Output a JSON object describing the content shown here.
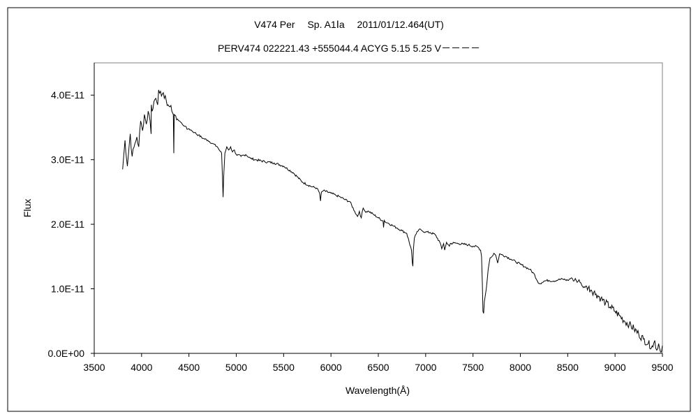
{
  "chart_data": {
    "type": "line",
    "title": "V474 Per　 Sp. A1Ⅰa　 2011/01/12.464(UT)",
    "subtitle": "PERV474 022221.43 +555044.4 ACYG 5.15 5.25 V－－－－",
    "xlabel": "Wavelength(Å)",
    "ylabel": "Flux",
    "xlim": [
      3500,
      9500
    ],
    "ylim": [
      0,
      4.5e-11
    ],
    "xticks": [
      3500,
      4000,
      4500,
      5000,
      5500,
      6000,
      6500,
      7000,
      7500,
      8000,
      8500,
      9000,
      9500
    ],
    "xtick_labels": [
      "3500",
      "4000",
      "4500",
      "5000",
      "5500",
      "6000",
      "6500",
      "7000",
      "7500",
      "8000",
      "8500",
      "9000",
      "9500"
    ],
    "yticks": [
      0,
      1e-11,
      2e-11,
      3e-11,
      4e-11
    ],
    "ytick_labels": [
      "0.0E+00",
      "1.0E-11",
      "2.0E-11",
      "3.0E-11",
      "4.0E-11"
    ],
    "grid": false,
    "legend": "none",
    "line_color": "#000000",
    "series": [
      {
        "x": [
          3800,
          3825,
          3850,
          3880,
          3900,
          3930,
          3950,
          3970,
          3990,
          4010,
          4030,
          4050,
          4070,
          4090,
          4101,
          4103,
          4110,
          4130,
          4150,
          4170,
          4180,
          4200,
          4220,
          4240,
          4260,
          4280,
          4300,
          4320,
          4335,
          4340,
          4345,
          4360,
          4380,
          4400,
          4430,
          4460,
          4480,
          4500,
          4530,
          4560,
          4600,
          4650,
          4700,
          4750,
          4800,
          4820,
          4845,
          4855,
          4861,
          4867,
          4880,
          4900,
          4920,
          4940,
          4960,
          4980,
          5000,
          5050,
          5100,
          5150,
          5200,
          5300,
          5400,
          5500,
          5600,
          5700,
          5800,
          5850,
          5880,
          5890,
          5895,
          5900,
          5920,
          6000,
          6050,
          6100,
          6150,
          6200,
          6250,
          6280,
          6300,
          6320,
          6340,
          6360,
          6400,
          6450,
          6500,
          6550,
          6555,
          6563,
          6570,
          6600,
          6650,
          6700,
          6750,
          6800,
          6850,
          6860,
          6865,
          6870,
          6880,
          6900,
          6930,
          6960,
          7000,
          7050,
          7100,
          7150,
          7170,
          7190,
          7200,
          7220,
          7250,
          7260,
          7300,
          7350,
          7400,
          7450,
          7500,
          7550,
          7580,
          7590,
          7598,
          7605,
          7612,
          7620,
          7640,
          7660,
          7680,
          7700,
          7720,
          7740,
          7760,
          7780,
          7800,
          7850,
          7900,
          7950,
          8000,
          8050,
          8100,
          8150,
          8180,
          8200,
          8230,
          8250,
          8300,
          8350,
          8400,
          8450,
          8500,
          8540,
          8560,
          8580,
          8600,
          8620,
          8650,
          8665,
          8700,
          8750,
          8800,
          8850,
          8900,
          8950,
          9000,
          9050,
          9100,
          9150,
          9200,
          9250,
          9300,
          9350,
          9400,
          9420,
          9440,
          9460,
          9480,
          9500
        ],
        "y": [
          2.85e-11,
          3.3e-11,
          2.9e-11,
          3.4e-11,
          3.05e-11,
          3.25e-11,
          3.35e-11,
          3.2e-11,
          3.6e-11,
          3.45e-11,
          3.7e-11,
          3.55e-11,
          3.75e-11,
          3.6e-11,
          3.4e-11,
          3.85e-11,
          3.75e-11,
          3.9e-11,
          3.95e-11,
          3.85e-11,
          4.08e-11,
          4.06e-11,
          4.02e-11,
          3.95e-11,
          3.92e-11,
          3.85e-11,
          3.82e-11,
          3.75e-11,
          3.7e-11,
          3.1e-11,
          3.7e-11,
          3.68e-11,
          3.63e-11,
          3.6e-11,
          3.55e-11,
          3.52e-11,
          3.47e-11,
          3.48e-11,
          3.45e-11,
          3.42e-11,
          3.38e-11,
          3.33e-11,
          3.3e-11,
          3.25e-11,
          3.2e-11,
          3.15e-11,
          3.1e-11,
          2.7e-11,
          2.42e-11,
          2.75e-11,
          3.1e-11,
          3.2e-11,
          3.15e-11,
          3.2e-11,
          3.12e-11,
          3.15e-11,
          3.08e-11,
          3.05e-11,
          3.08e-11,
          3.02e-11,
          3e-11,
          2.97e-11,
          2.95e-11,
          2.9e-11,
          2.8e-11,
          2.65e-11,
          2.58e-11,
          2.56e-11,
          2.48e-11,
          2.36e-11,
          2.45e-11,
          2.5e-11,
          2.52e-11,
          2.48e-11,
          2.45e-11,
          2.42e-11,
          2.38e-11,
          2.35e-11,
          2.2e-11,
          2.12e-11,
          2.2e-11,
          2.1e-11,
          2.25e-11,
          2.2e-11,
          2.2e-11,
          2.15e-11,
          2.1e-11,
          2.05e-11,
          1.95e-11,
          2.06e-11,
          2.04e-11,
          2.02e-11,
          1.98e-11,
          1.94e-11,
          1.9e-11,
          1.86e-11,
          1.6e-11,
          1.4e-11,
          1.35e-11,
          1.6e-11,
          1.78e-11,
          1.85e-11,
          1.92e-11,
          1.9e-11,
          1.88e-11,
          1.87e-11,
          1.84e-11,
          1.72e-11,
          1.62e-11,
          1.7e-11,
          1.6e-11,
          1.72e-11,
          1.66e-11,
          1.7e-11,
          1.71e-11,
          1.7e-11,
          1.69e-11,
          1.68e-11,
          1.66e-11,
          1.65e-11,
          1.6e-11,
          1.5e-11,
          1.1e-11,
          6.5e-12,
          6.2e-12,
          8e-12,
          1e-11,
          1.3e-11,
          1.48e-11,
          1.5e-11,
          1.55e-11,
          1.52e-11,
          1.4e-11,
          1.54e-11,
          1.53e-11,
          1.5e-11,
          1.46e-11,
          1.42e-11,
          1.38e-11,
          1.34e-11,
          1.3e-11,
          1.22e-11,
          1.12e-11,
          1.08e-11,
          1.1e-11,
          1.12e-11,
          1.13e-11,
          1.12e-11,
          1.14e-11,
          1.15e-11,
          1.13e-11,
          1.17e-11,
          1.12e-11,
          1.16e-11,
          1.1e-11,
          1.14e-11,
          1.05e-11,
          1.02e-11,
          1.04e-11,
          9.8e-12,
          9.2e-12,
          8.5e-12,
          7.8e-12,
          7.2e-12,
          6.5e-12,
          5.8e-12,
          5e-12,
          4.5e-12,
          3.8e-12,
          3e-12,
          2.2e-12,
          1.5e-12,
          1e-12,
          2e-12,
          5e-13,
          1.5e-12,
          2e-13,
          1.2e-12
        ]
      }
    ]
  }
}
